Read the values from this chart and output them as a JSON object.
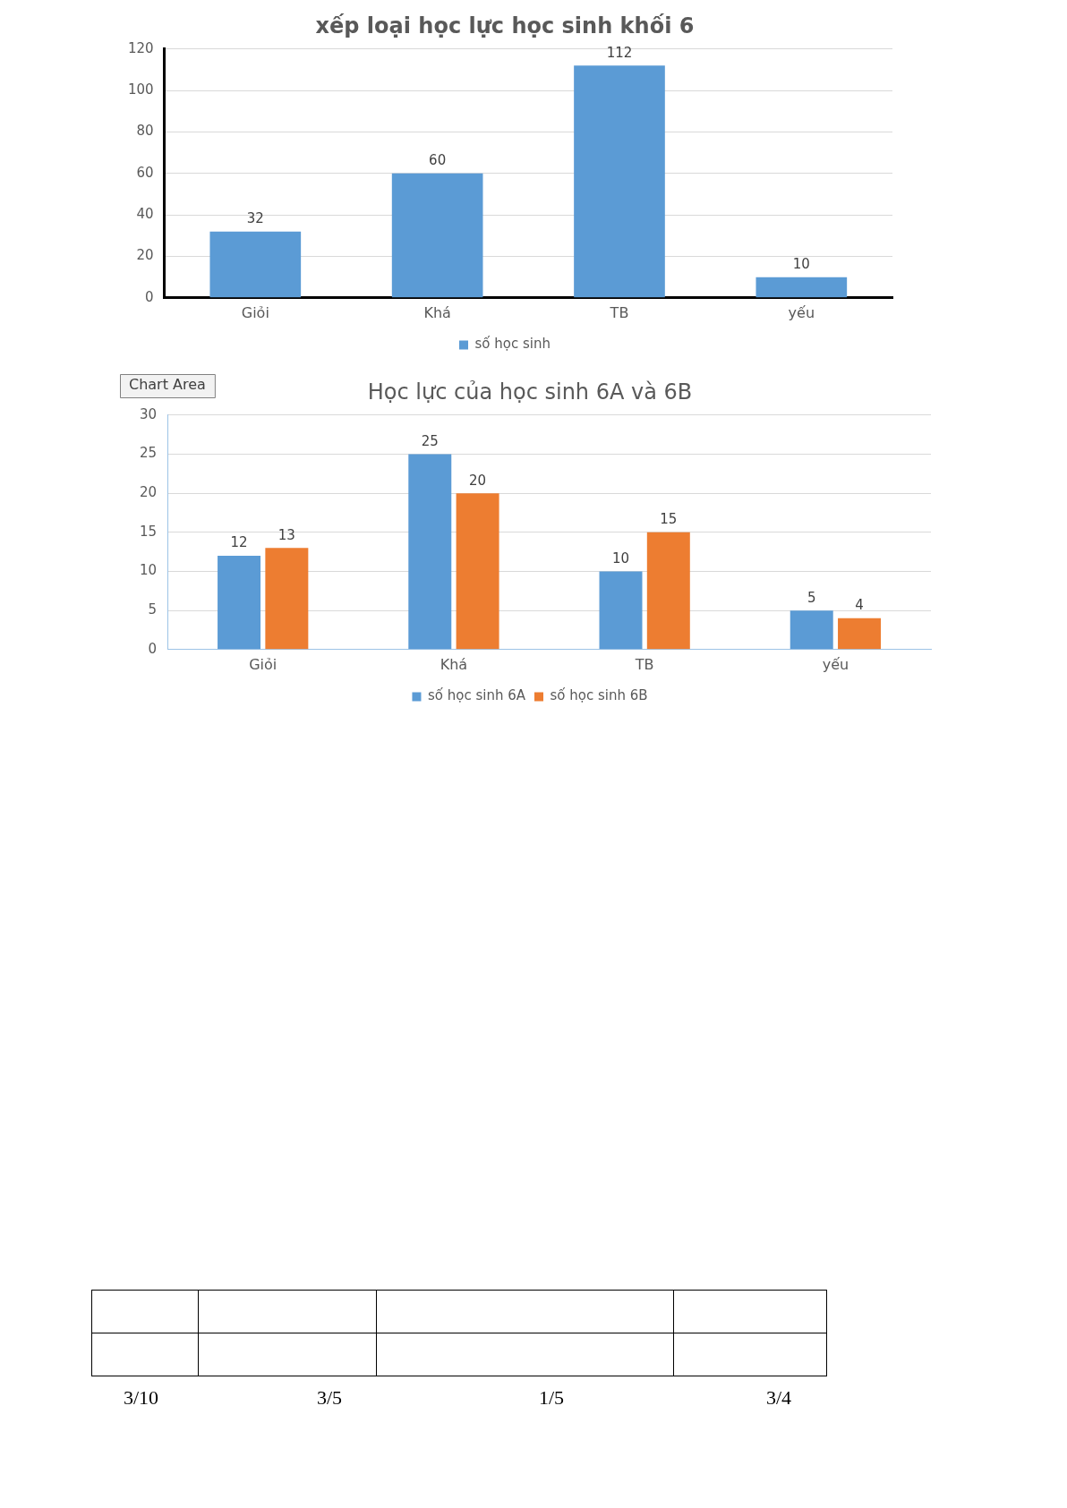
{
  "chart_data": [
    {
      "type": "bar",
      "title": "xếp loại học lực học sinh khối 6",
      "categories": [
        "Giỏi",
        "Khá",
        "TB",
        "yếu"
      ],
      "series": [
        {
          "name": "số học sinh",
          "color": "#5b9bd5",
          "values": [
            32,
            60,
            112,
            10
          ]
        }
      ],
      "ylim": [
        0,
        120
      ],
      "yticks": [
        0,
        20,
        40,
        60,
        80,
        100,
        120
      ],
      "grid": "y",
      "legend": "bottom",
      "data_labels": true
    },
    {
      "type": "bar",
      "title": "Học lực của học sinh 6A và 6B",
      "categories": [
        "Giỏi",
        "Khá",
        "TB",
        "yếu"
      ],
      "series": [
        {
          "name": "số học sinh 6A",
          "color": "#5b9bd5",
          "values": [
            12,
            25,
            10,
            5
          ]
        },
        {
          "name": "số học sinh 6B",
          "color": "#ed7d31",
          "values": [
            13,
            20,
            15,
            4
          ]
        }
      ],
      "ylim": [
        0,
        30
      ],
      "yticks": [
        0,
        5,
        10,
        15,
        20,
        25,
        30
      ],
      "grid": "y",
      "legend": "bottom",
      "data_labels": true,
      "annotations": [
        "Chart Area"
      ]
    },
    {
      "type": "other",
      "annotations": [
        "3/10",
        "3/5",
        "1/5",
        "3/4"
      ]
    }
  ]
}
